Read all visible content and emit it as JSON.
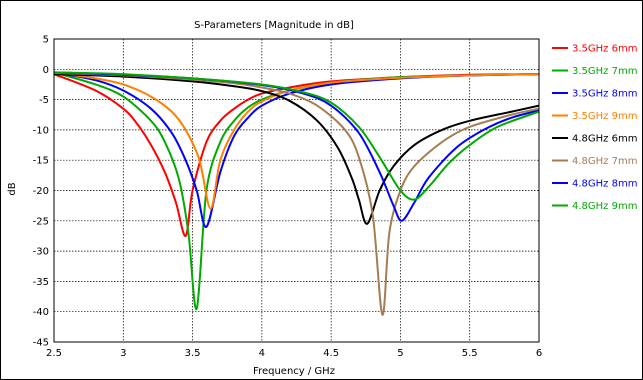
{
  "chart_data": {
    "type": "line",
    "title": "S-Parameters [Magnitude in dB]",
    "xlabel": "Frequency / GHz",
    "ylabel": "dB",
    "xlim": [
      2.5,
      6
    ],
    "ylim": [
      -45,
      5
    ],
    "xticks": [
      "2.5",
      "3",
      "3.5",
      "4",
      "4.5",
      "5",
      "5.5",
      "6"
    ],
    "yticks": [
      "5",
      "0",
      "-5",
      "-10",
      "-15",
      "-20",
      "-25",
      "-30",
      "-35",
      "-40",
      "-45"
    ],
    "grid": true,
    "legend_position": "right",
    "series": [
      {
        "name": "3.5GHz 6mm",
        "color": "#ff0000",
        "x": [
          2.5,
          2.8,
          3.0,
          3.1,
          3.2,
          3.3,
          3.38,
          3.45,
          3.5,
          3.6,
          3.7,
          3.8,
          3.9,
          4.0,
          4.2,
          4.5,
          5.0,
          5.5,
          6.0
        ],
        "y": [
          -0.8,
          -3.5,
          -6.5,
          -9,
          -12.5,
          -17,
          -22,
          -27.5,
          -20,
          -12,
          -8.5,
          -6.5,
          -5,
          -4,
          -3,
          -2,
          -1.3,
          -0.9,
          -0.8
        ]
      },
      {
        "name": "3.5GHz 7mm",
        "color": "#00aa00",
        "x": [
          2.5,
          2.8,
          3.0,
          3.2,
          3.3,
          3.4,
          3.47,
          3.53,
          3.6,
          3.7,
          3.8,
          3.9,
          4.0,
          4.2,
          4.5,
          5.0,
          5.5,
          6.0
        ],
        "y": [
          -0.5,
          -2.5,
          -4.5,
          -8.5,
          -12,
          -18,
          -27,
          -39.5,
          -20,
          -12,
          -8.5,
          -6.3,
          -5,
          -3.5,
          -2.2,
          -1.3,
          -1.0,
          -0.8
        ]
      },
      {
        "name": "3.5GHz 8mm",
        "color": "#0000ff",
        "x": [
          2.5,
          2.8,
          3.0,
          3.2,
          3.35,
          3.45,
          3.53,
          3.6,
          3.7,
          3.8,
          3.9,
          4.0,
          4.2,
          4.5,
          5.0,
          5.5,
          6.0
        ],
        "y": [
          -0.5,
          -1.8,
          -3.5,
          -6.5,
          -10.5,
          -15,
          -20,
          -26,
          -17,
          -11,
          -8,
          -6,
          -4,
          -2.5,
          -1.5,
          -1.0,
          -0.8
        ]
      },
      {
        "name": "3.5GHz 9mm",
        "color": "#ff8000",
        "x": [
          2.5,
          2.8,
          3.0,
          3.2,
          3.35,
          3.45,
          3.55,
          3.63,
          3.7,
          3.8,
          3.9,
          4.0,
          4.2,
          4.5,
          5.0,
          5.5,
          6.0
        ],
        "y": [
          -0.5,
          -1.5,
          -2.5,
          -4.5,
          -7,
          -10,
          -15,
          -23,
          -15,
          -10,
          -7,
          -5.3,
          -3.5,
          -2.2,
          -1.4,
          -1.0,
          -0.8
        ]
      },
      {
        "name": "4.8GHz 6mm",
        "color": "#000000",
        "x": [
          2.5,
          3.0,
          3.5,
          3.8,
          4.0,
          4.2,
          4.4,
          4.55,
          4.65,
          4.7,
          4.76,
          4.85,
          4.95,
          5.1,
          5.3,
          5.5,
          5.8,
          6.0
        ],
        "y": [
          -0.8,
          -1.2,
          -2.0,
          -2.8,
          -3.6,
          -5.2,
          -8.5,
          -13,
          -18,
          -21.5,
          -25.5,
          -20,
          -16,
          -12.5,
          -10,
          -8.5,
          -7,
          -6
        ]
      },
      {
        "name": "4.8GHz 7mm",
        "color": "#a67c52",
        "x": [
          2.5,
          3.0,
          3.5,
          3.8,
          4.0,
          4.2,
          4.4,
          4.6,
          4.7,
          4.8,
          4.87,
          4.92,
          5.0,
          5.1,
          5.3,
          5.5,
          5.8,
          6.0
        ],
        "y": [
          -0.6,
          -1.0,
          -1.7,
          -2.3,
          -3.0,
          -4.0,
          -6.0,
          -10,
          -14.5,
          -24,
          -40.5,
          -27,
          -20,
          -16,
          -12,
          -9.5,
          -7.5,
          -6.5
        ]
      },
      {
        "name": "4.8GHz 8mm",
        "color": "#0000ff",
        "x": [
          2.5,
          3.0,
          3.5,
          4.0,
          4.3,
          4.5,
          4.7,
          4.85,
          4.95,
          5.01,
          5.1,
          5.2,
          5.4,
          5.6,
          5.8,
          6.0
        ],
        "y": [
          -0.5,
          -0.9,
          -1.5,
          -2.6,
          -4.0,
          -6.0,
          -10.5,
          -17,
          -22.5,
          -25,
          -22,
          -18,
          -13,
          -10,
          -8,
          -6.8
        ]
      },
      {
        "name": "4.8GHz 9mm",
        "color": "#00aa00",
        "x": [
          2.5,
          3.0,
          3.5,
          4.0,
          4.3,
          4.5,
          4.7,
          4.85,
          5.0,
          5.1,
          5.2,
          5.35,
          5.5,
          5.7,
          6.0
        ],
        "y": [
          -0.5,
          -0.8,
          -1.5,
          -2.5,
          -3.8,
          -5.5,
          -9.5,
          -14.5,
          -20,
          -21.5,
          -19.5,
          -15.5,
          -12.5,
          -9.5,
          -7
        ]
      }
    ]
  }
}
